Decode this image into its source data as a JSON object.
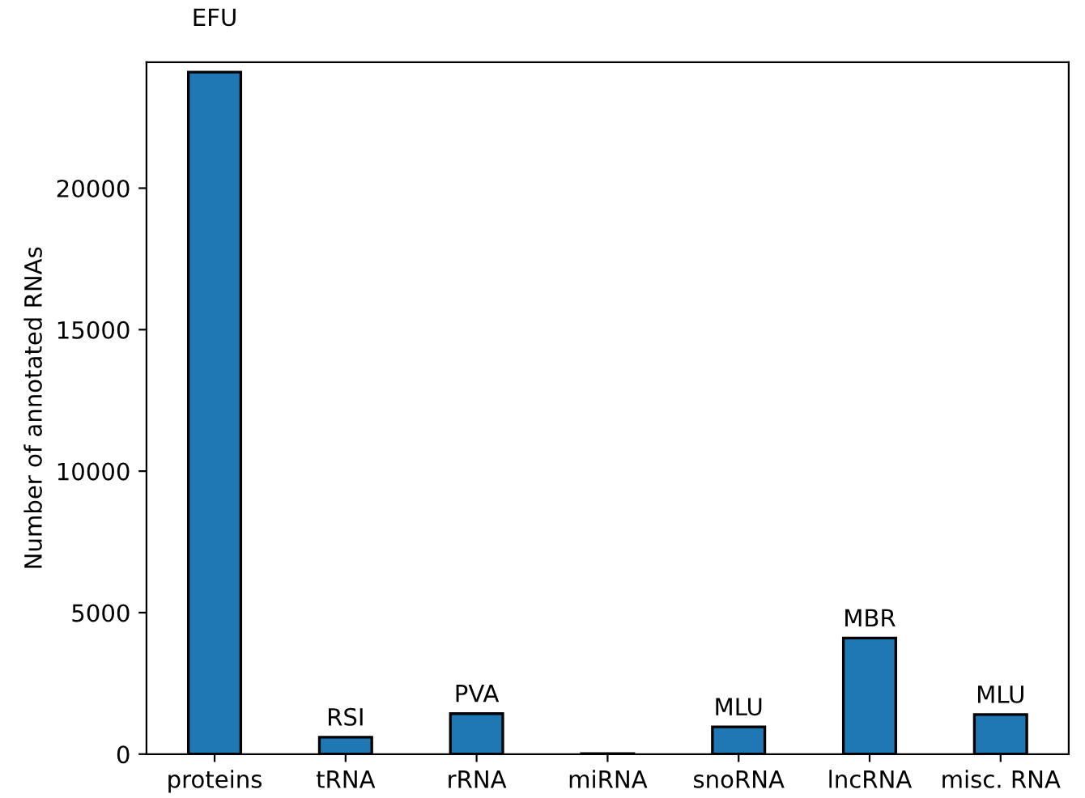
{
  "chart_data": {
    "type": "bar",
    "ylabel": "Number of annotated RNAs",
    "categories": [
      "proteins",
      "tRNA",
      "rRNA",
      "miRNA",
      "snoRNA",
      "lncRNA",
      "misc. RNA"
    ],
    "values": [
      24100,
      600,
      1430,
      20,
      960,
      4100,
      1400
    ],
    "color": "#1f77b4",
    "ylim": [
      0,
      24450
    ],
    "yticks": [
      0,
      5000,
      10000,
      15000,
      20000
    ],
    "grid": false,
    "annotations": [
      {
        "text": "EFU",
        "x": "proteins",
        "y": 24100
      },
      {
        "text": "RSI",
        "x": "tRNA",
        "y": 600
      },
      {
        "text": "PVA",
        "x": "rRNA",
        "y": 1430
      },
      {
        "text": "MLU",
        "x": "snoRNA",
        "y": 960
      },
      {
        "text": "MBR",
        "x": "lncRNA",
        "y": 4100
      },
      {
        "text": "MLU",
        "x": "misc. RNA",
        "y": 1400
      }
    ]
  }
}
